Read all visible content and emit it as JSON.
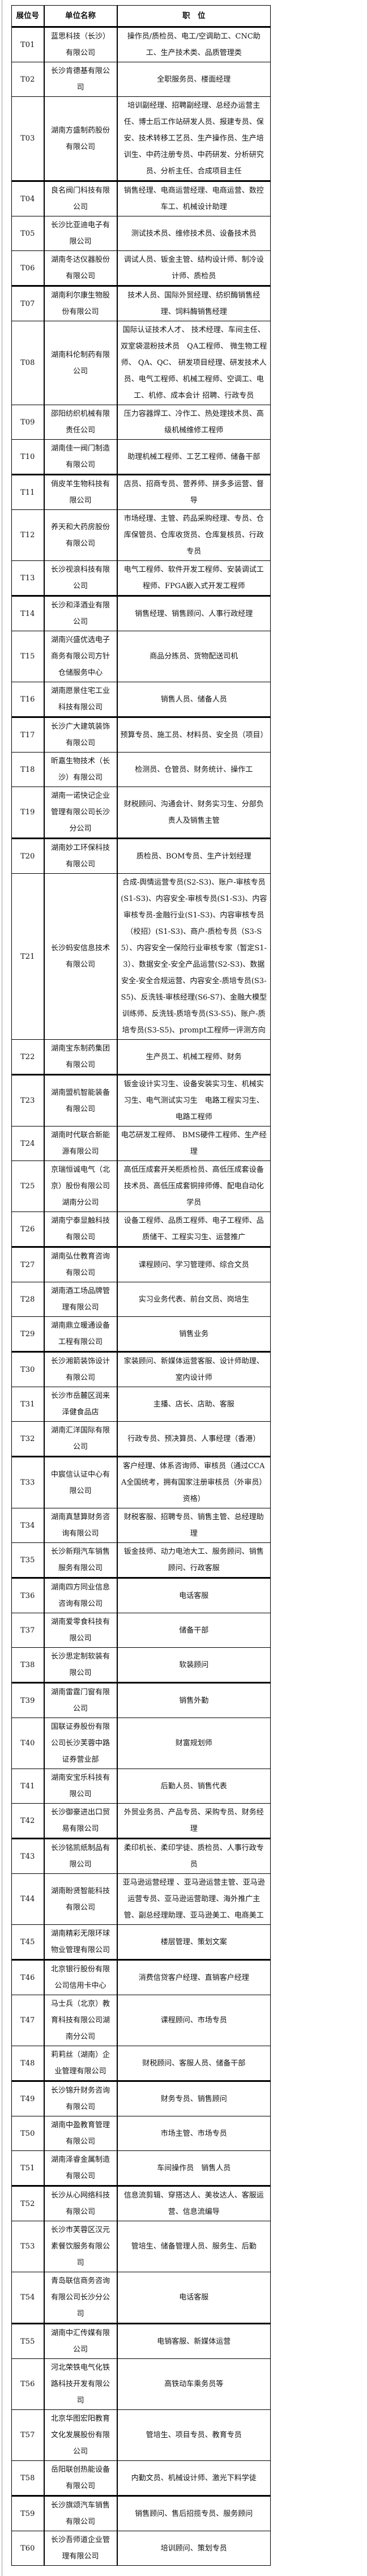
{
  "table": {
    "headers": [
      "展位号",
      "单位名称",
      "职　位"
    ],
    "rows": [
      {
        "booth": "T01",
        "company": "蓝思科技（长沙）有限公司",
        "positions": "操作员/质检员、电工/空调助工、CNC助工、生产技术类、品质管理类"
      },
      {
        "booth": "T02",
        "company": "长沙肯德基有限公司",
        "positions": "全职服务员、楼面经理"
      },
      {
        "booth": "T03",
        "company": "湖南方盛制药股份有限公司",
        "positions": "培训副经理、招聘副经理、总经办运营主任、博士后工作站研发人员、报建专员、保安、技术转移工艺员、生产操作员、生产培训生、中药注册专员、中药研发、分析研究员、分析主任、合成项目主任"
      },
      {
        "booth": "T04",
        "company": "良名阀门科技有限公司",
        "positions": "销售经理、电商运营经理、电商运营、数控车工、机械设计助理"
      },
      {
        "booth": "T05",
        "company": "长沙比亚迪电子有限公司",
        "positions": "测试技术员、维修技术员、设备技术员"
      },
      {
        "booth": "T06",
        "company": "湖南冬达仪器股份有限公司",
        "positions": "调试人员、钣金主管、结构设计师、制冷设计师、质检员"
      },
      {
        "booth": "T07",
        "company": "湖南利尔康生物股份有限公司",
        "positions": "技术人员、国际外贸经理、纺织酶销售经理、饲料酶销售经理"
      },
      {
        "booth": "T08",
        "company": "湖南科伦制药有限公司",
        "positions": "国际认证技术人才、 技术经理、车间主任、双室袋混粉技术员　QA工程师、 微生物工程师、 QA、QC、 研发项目经理、研发技术人员、电气工程师、机械工程师、空调工、电工、机修、成本会计 招聘、行政专员"
      },
      {
        "booth": "T09",
        "company": "邵阳纺织机械有限责任公司",
        "positions": "压力容器焊工、冷作工、热处理技术员、高级机械维修工程师"
      },
      {
        "booth": "T10",
        "company": "湖南佳一阀门制造有限公司",
        "positions": "助理机械工程师、工艺工程师、储备干部"
      },
      {
        "booth": "T11",
        "company": "俏皮羊生物科技有限公司",
        "positions": "店员、招商专员、营养师、拼多多运营、督导"
      },
      {
        "booth": "T12",
        "company": "养天和大药房股份有限公司",
        "positions": "市场经理、主管、药品采购经理、专员、仓库保管员、仓库收货员、仓库复核员、行政专员"
      },
      {
        "booth": "T13",
        "company": "长沙视浪科技有限公司",
        "positions": "电气工程师、软件开发工程师、安装调试工程师、FPGA嵌入式开发工程师"
      },
      {
        "booth": "T14",
        "company": "长沙和泽酒业有限公司",
        "positions": "销售经理、销售顾问、人事行政经理"
      },
      {
        "booth": "T15",
        "company": "湖南兴盛优选电子商务有限公司方针仓储服务中心",
        "positions": "商品分拣员、货物配送司机"
      },
      {
        "booth": "T16",
        "company": "湖南愿景住宅工业科技有限公司",
        "positions": "销售人员、储备人员"
      },
      {
        "booth": "T17",
        "company": "长沙广大建筑装饰有限公司",
        "positions": "预算专员、施工员、材料员、安全员（项目）"
      },
      {
        "booth": "T18",
        "company": "昕嘉生物技术（长沙）有限公司",
        "positions": "检测员、仓管员、财务统计、操作工"
      },
      {
        "booth": "T19",
        "company": "湖南一诺快记企业管理有限公司长沙分公司",
        "positions": "财税顾问、沟通会计、财务实习生、分部负责人及销售主管"
      },
      {
        "booth": "T20",
        "company": "湖南妙工环保科技有限公司",
        "positions": "质检员、BOM专员、生产计划经理"
      },
      {
        "booth": "T21",
        "company": "长沙蚂安信息技术有限公司",
        "positions": "合成-舆情运营专员(S2-S3)、账户-审核专员(S1-S3)、内容安全-审核专员(S1-S3)、内容审核专员-金融行业(S1-S3)、内容审核专员（校招）(S1-S3)、商户-质检专员（S3-S5）、内容安全一保险行业审核专家（暂定S1-3）、数据安全-安全产品运营(S2-S3)、数据安全-安全合规运营、内容安全-质培专员(S3-S5)、反洗钱-审核经理(S6-S7)、金融大模型训练师、反洗钱-质培专员(S3-S5)、账户-质培专员(S3-S5)、prompt工程师一评测方向"
      },
      {
        "booth": "T22",
        "company": "湖南宝东制药集团有限公司",
        "positions": "生产员工、机械工程师、财务"
      },
      {
        "booth": "T23",
        "company": "湖南盟机智能装备有限公司",
        "positions": "钣金设计实习生、设备安装实习生、机械实习生、电气测试实习生　电路工程实习生、电路工程师"
      },
      {
        "booth": "T24",
        "company": "湖南时代联合新能源有限公司",
        "positions": "电芯研发工程师、 BMS硬件工程师、生产经理"
      },
      {
        "booth": "T25",
        "company": "京瑞恒诚电气（北京）股份有限公司湖南分公司",
        "positions": "高低压成套开关柜质检员、高低压成套设备技术员、高低压成套铜排师傅、配电自动化学员"
      },
      {
        "booth": "T26",
        "company": "湖南宁泰显触科技有限公司",
        "positions": "设备工程师、品质工程师、电子工程师、品质储干、工程实习生、运营推广"
      },
      {
        "booth": "T27",
        "company": "湖南弘仕教育咨询有限公司",
        "positions": "课程顾问、学习管理师、综合文员"
      },
      {
        "booth": "T28",
        "company": "湖南酒工场品牌管理有限公司",
        "positions": "实习业务代表、前台文员、岗培生"
      },
      {
        "booth": "T29",
        "company": "湖南鼎立暖通设备工程有限公司",
        "positions": "销售业务"
      },
      {
        "booth": "T30",
        "company": "长沙湘箭装饰设计有限公司",
        "positions": "家装顾问、新媒体运营客服、设计师助理、室内设计师"
      },
      {
        "booth": "T31",
        "company": "长沙市岳麓区润来泽健食品店",
        "positions": "主播、店长、店助、客服"
      },
      {
        "booth": "T32",
        "company": "湖南汇洋国际有限公司",
        "positions": "行政专员、预决算员、人事经理（香港）"
      },
      {
        "booth": "T33",
        "company": "中宸信认证中心有限公司",
        "positions": "客户经理、体系咨询师、审核员（通过CCAA全国统考，拥有国家注册审核员（外审员）资格）"
      },
      {
        "booth": "T34",
        "company": "湖南真慧算财务咨询有限公司",
        "positions": "财税客服、招聘专员、销售主管、总经理助理"
      },
      {
        "booth": "T35",
        "company": "长沙新翔汽车销售服务有限公司",
        "positions": "钣金技师、动力电池大工、服务顾问、销售顾问、行政客服"
      },
      {
        "booth": "T36",
        "company": "湖南四方同业信息咨询有限公司",
        "positions": "电话客服"
      },
      {
        "booth": "T37",
        "company": "湖南爱零食科技有限公司",
        "positions": "储备干部"
      },
      {
        "booth": "T38",
        "company": "长沙思定制软装有限公司",
        "positions": "软装顾问"
      },
      {
        "booth": "T39",
        "company": "湖南雷霆门窗有限公司",
        "positions": "销售外勤"
      },
      {
        "booth": "T40",
        "company": "国联证券股份有限公司长沙芙蓉中路证券营业部",
        "positions": "财富规划师"
      },
      {
        "booth": "T41",
        "company": "湖南安宝乐科技有限公司",
        "positions": "后勤人员、销售代表"
      },
      {
        "booth": "T42",
        "company": "长沙御豪进出口贸易有限公司",
        "positions": "外贸业务员、产品专员、采购专员、财务经理"
      },
      {
        "booth": "T43",
        "company": "长沙铭凯纸制品有限公司",
        "positions": "柔印机长、柔印学徒、质检员、人事行政专员"
      },
      {
        "booth": "T44",
        "company": "湖南盼贤智能科技有限公司",
        "positions": "亚马逊运营经理 、亚马逊运营主管、亚马逊运营专员、亚马逊运营助理、海外推广主管、副总经理助理、亚马逊美工、电商美工"
      },
      {
        "booth": "T45",
        "company": "湖南精彩无限环球物业管理有限公司",
        "positions": "楼层管理、策划文案"
      },
      {
        "booth": "T46",
        "company": "北京银行股份有限公司信用卡中心",
        "positions": "消费信贷客户经理、直销客户经理"
      },
      {
        "booth": "T47",
        "company": "马士兵（北京）教育科技有限公司湖南分公司",
        "positions": "课程顾问、市场专员"
      },
      {
        "booth": "T48",
        "company": "莉莉丝（湖南）企业管理有限公司",
        "positions": "财税顾问、客服人员、储备干部"
      },
      {
        "booth": "T49",
        "company": "长沙锦升财务咨询有限公司",
        "positions": "财务专员、销售顾问"
      },
      {
        "booth": "T50",
        "company": "湖南中盈教育管理有限公司",
        "positions": "市场主管、市场专员"
      },
      {
        "booth": "T51",
        "company": "湖南泽睿金属制造有限公司",
        "positions": "车间操作员　销售人员"
      },
      {
        "booth": "T52",
        "company": "长沙从心网络科技有限公司",
        "positions": "信息流剪辑、穿搭达人、美妆达人、客服运营、信息流编导"
      },
      {
        "booth": "T53",
        "company": "长沙市芙蓉区汉元素餐饮服务有限公司",
        "positions": "管培生、储备管理人员、服务生、后勤"
      },
      {
        "booth": "T54",
        "company": "青岛联信商务咨询有限公司长沙分公司",
        "positions": "电话客服"
      },
      {
        "booth": "T55",
        "company": "湖南中汇传媒有限公司",
        "positions": "电销客服、新媒体运营"
      },
      {
        "booth": "T56",
        "company": "河北荣铁电气化铁路科技开发有限公司",
        "positions": "高铁动车乘务员等"
      },
      {
        "booth": "T57",
        "company": "北京华图宏阳教育文化发展股份有限公司",
        "positions": "管培生、项目专员、教育专员"
      },
      {
        "booth": "T58",
        "company": "岳阳联创热能设备有限公司",
        "positions": "内勤文员、机械设计师、激光下料学徒"
      },
      {
        "booth": "T59",
        "company": "长沙旗颂汽车销售有限公司",
        "positions": "销售顾问、售后招揽专员、服务顾问"
      },
      {
        "booth": "T60",
        "company": "长沙吾师道企业管理有限公司",
        "positions": "培训顾问、策划专员"
      }
    ]
  }
}
